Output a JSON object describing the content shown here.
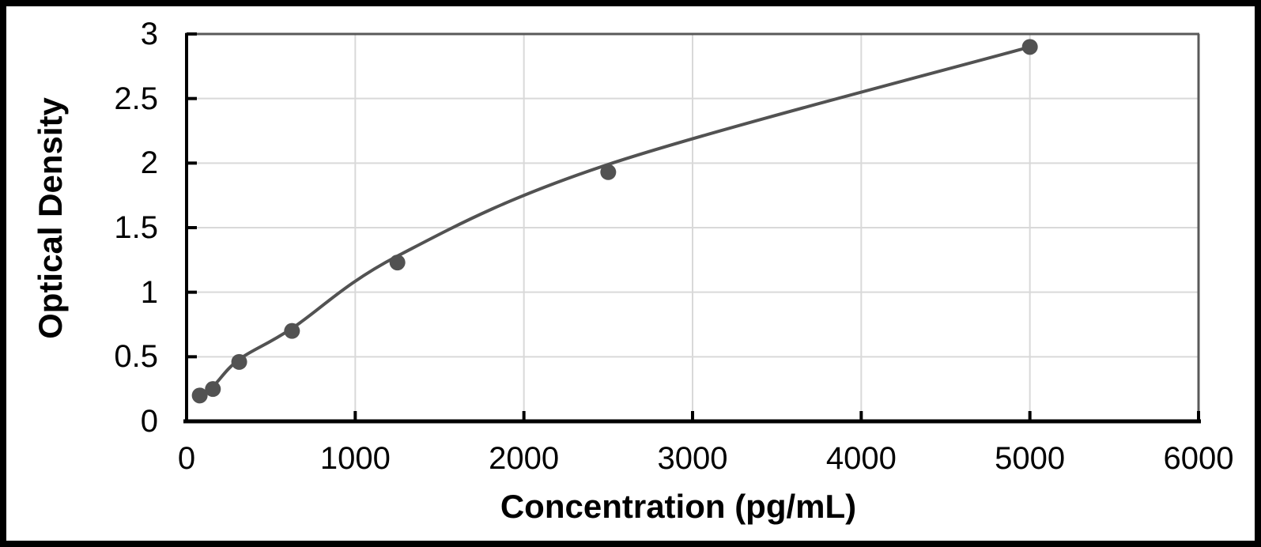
{
  "chart_data": {
    "type": "scatter",
    "title": "",
    "xlabel": "Concentration (pg/mL)",
    "ylabel": "Optical Density",
    "x": [
      78,
      156,
      312,
      625,
      1250,
      2500,
      5000
    ],
    "y": [
      0.2,
      0.25,
      0.46,
      0.7,
      1.23,
      1.93,
      2.9
    ],
    "curve_y": [
      0.21,
      0.27,
      0.48,
      0.72,
      1.28,
      1.99,
      2.9
    ],
    "xlim": [
      0,
      6000
    ],
    "ylim": [
      0,
      3
    ],
    "xticks": [
      0,
      1000,
      2000,
      3000,
      4000,
      5000,
      6000
    ],
    "yticks": [
      0,
      0.5,
      1,
      1.5,
      2,
      2.5,
      3
    ],
    "grid": true,
    "legend": false,
    "marker": "circle",
    "marker_radius": 10,
    "line_style": "smooth",
    "colors": {
      "series": "#525252",
      "gridline": "#d9d9d9",
      "axis": "#000000",
      "plot_border": "#595959",
      "text": "#000000",
      "frame": "#000000",
      "background": "#ffffff"
    }
  }
}
